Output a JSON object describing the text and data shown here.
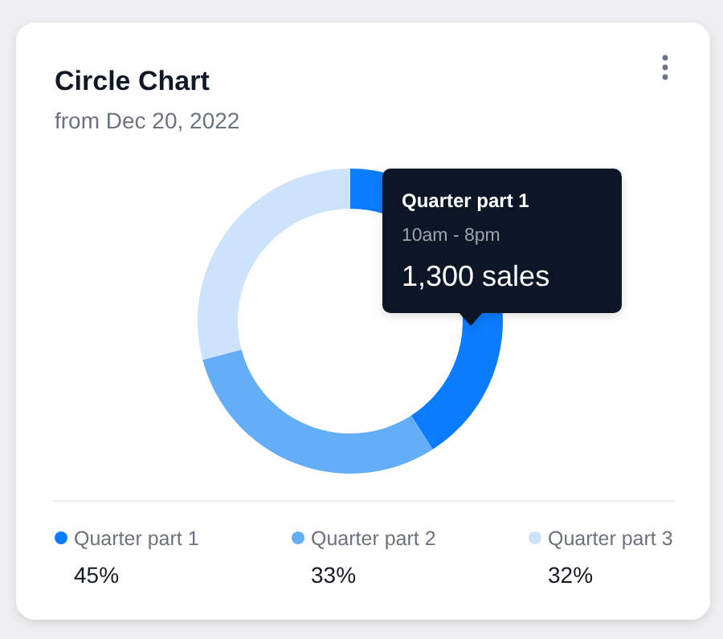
{
  "chart_data": {
    "type": "donut",
    "title": "Circle Chart",
    "subtitle": "from Dec 20, 2022",
    "categories": [
      "Quarter part 1",
      "Quarter part 2",
      "Quarter part 3"
    ],
    "values": [
      45,
      33,
      32
    ],
    "value_labels": [
      "45%",
      "33%",
      "32%"
    ],
    "colors": [
      "#0a7cff",
      "#64aef8",
      "#cce3fb"
    ],
    "legend": "bottom",
    "annotations": [
      "Quarter part 1",
      "10am - 8pm",
      "1,300 sales"
    ]
  }
}
